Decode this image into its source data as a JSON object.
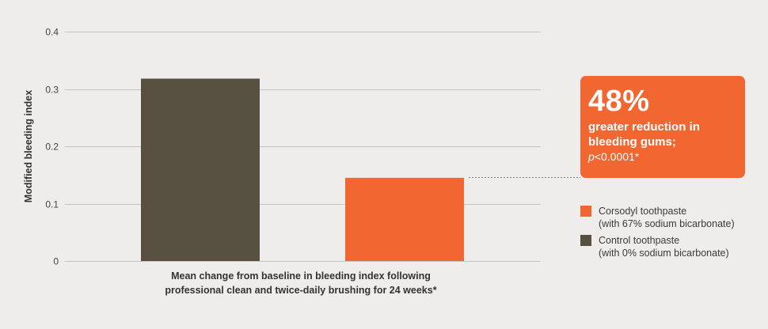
{
  "chart_data": {
    "type": "bar",
    "categories": [
      "",
      ""
    ],
    "series": [
      {
        "name": "Control toothpaste",
        "values": [
          0.318,
          null
        ],
        "color": "#575040"
      },
      {
        "name": "Corsodyl toothpaste",
        "values": [
          null,
          0.145
        ],
        "color": "#f26631"
      }
    ],
    "values": [
      0.318,
      0.145
    ],
    "bar_colors": [
      "#575040",
      "#f26631"
    ],
    "ylabel": "Modified bleeding index",
    "xlabel_lines": [
      "Mean change from baseline in bleeding index following",
      "professional clean and twice-daily brushing for 24 weeks*"
    ],
    "ylim": [
      0,
      0.4
    ],
    "yticks": [
      0,
      0.1,
      0.2,
      0.3,
      0.4
    ],
    "ytick_labels": [
      "0",
      "0.1",
      "0.2",
      "0.3",
      "0.4"
    ],
    "grid": true,
    "legend_position": "right"
  },
  "callout": {
    "big": "48%",
    "text_line1": "greater reduction in",
    "text_line2": "bleeding gums;",
    "p_symbol": "p",
    "p_rest": "<0.0001*"
  },
  "legend": [
    {
      "line1": "Corsodyl toothpaste",
      "line2": "(with 67% sodium bicarbonate)",
      "color": "#f26631"
    },
    {
      "line1": "Control toothpaste",
      "line2": "(with 0% sodium bicarbonate)",
      "color": "#575040"
    }
  ],
  "colors": {
    "background": "#eeedeb",
    "grid": "#c6c4c0",
    "control": "#575040",
    "corsodyl": "#f26631"
  }
}
